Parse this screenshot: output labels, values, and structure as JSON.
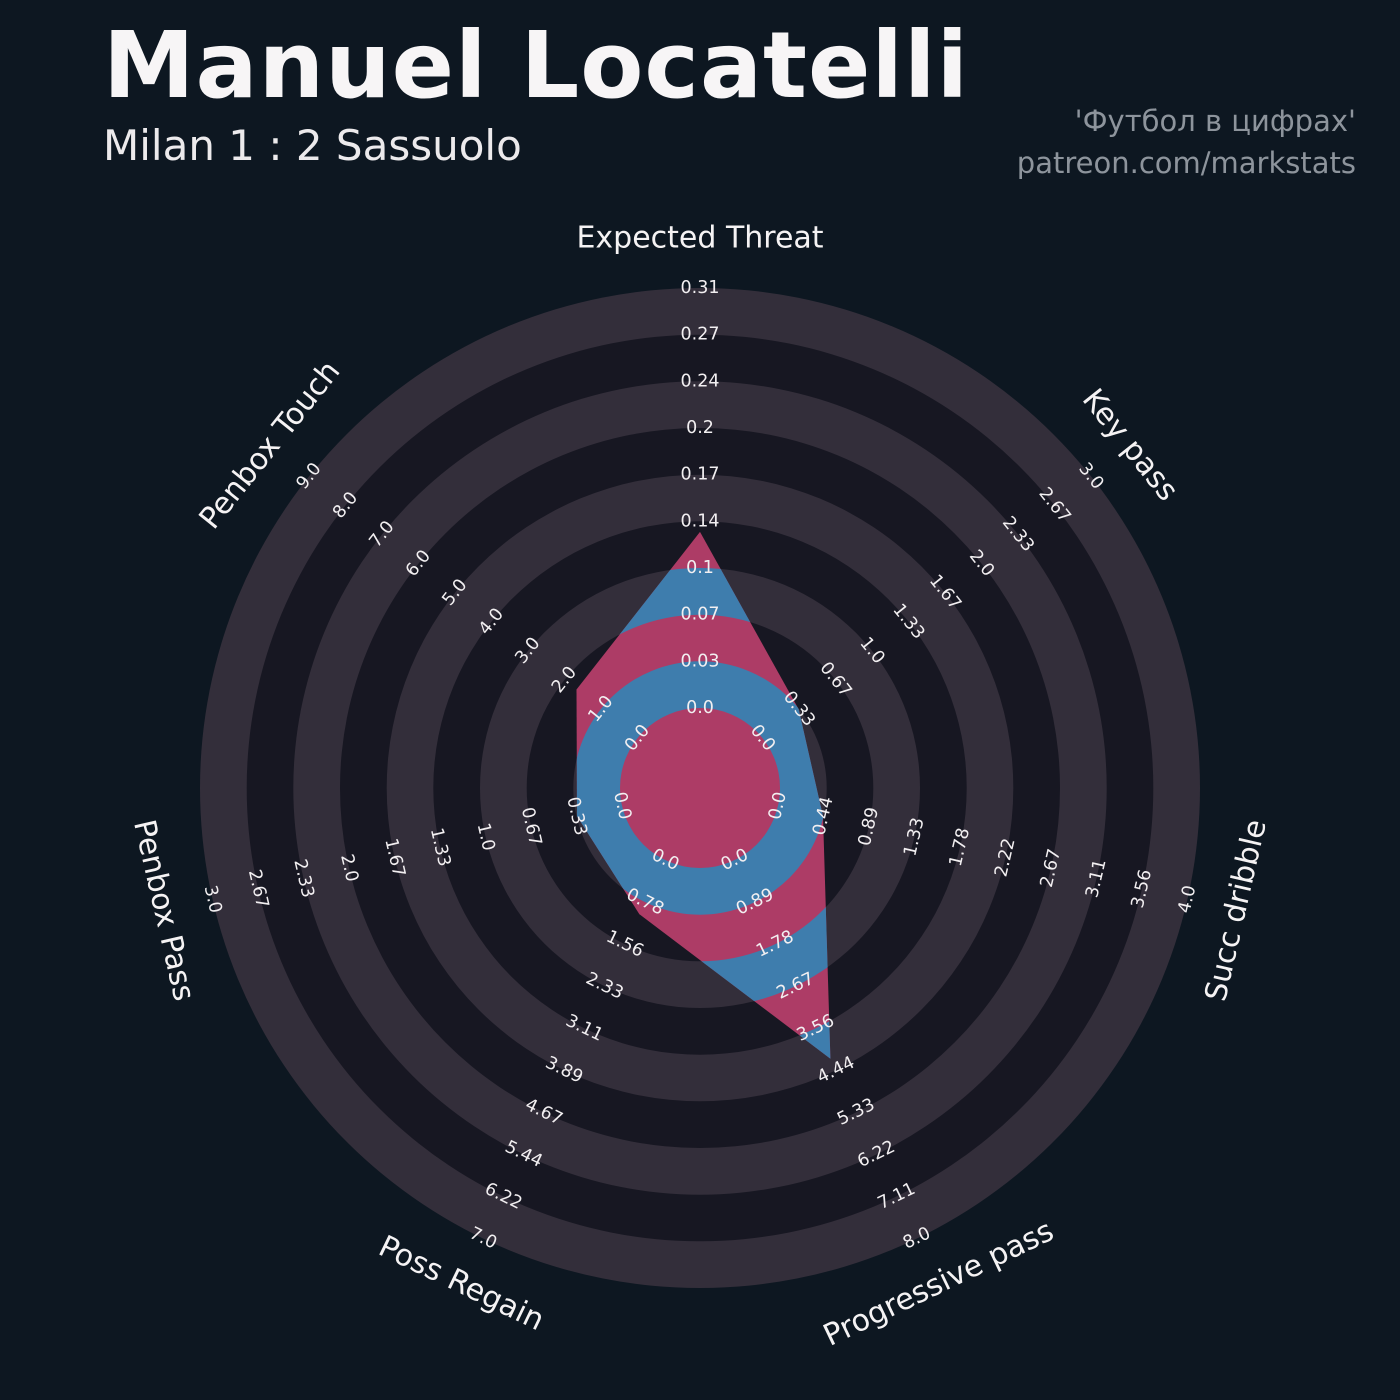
{
  "header": {
    "title": "Manuel Locatelli",
    "subtitle": "Milan 1 : 2 Sassuolo"
  },
  "credits": {
    "line1": "'Футбол в цифрах'",
    "line2": "patreon.com/markstats"
  },
  "chart_data": {
    "type": "radar",
    "title": "Manuel Locatelli — Milan 1 : 2 Sassuolo",
    "grid": "concentric-rings",
    "legend": "none",
    "rings_per_axis": 9,
    "direction": "clockwise",
    "start": "top",
    "axes": [
      {
        "label": "Expected Threat",
        "min": 0.0,
        "max": 0.31,
        "value": 0.13,
        "ticks": [
          "0.0",
          "0.03",
          "0.07",
          "0.1",
          "0.14",
          "0.17",
          "0.2",
          "0.24",
          "0.27",
          "0.31"
        ]
      },
      {
        "label": "Key pass",
        "min": 0.0,
        "max": 3.0,
        "value": 0.33,
        "ticks": [
          "0.0",
          "0.33",
          "0.67",
          "1.0",
          "1.33",
          "1.67",
          "2.0",
          "2.33",
          "2.67",
          "3.0"
        ]
      },
      {
        "label": "Succ dribble",
        "min": 0.0,
        "max": 4.0,
        "value": 0.44,
        "ticks": [
          "0.0",
          "0.44",
          "0.89",
          "1.33",
          "1.78",
          "2.22",
          "2.67",
          "3.11",
          "3.56",
          "4.0"
        ]
      },
      {
        "label": "Progressive pass",
        "min": 0.0,
        "max": 8.0,
        "value": 4.2,
        "ticks": [
          "0.0",
          "0.89",
          "1.78",
          "2.67",
          "3.56",
          "4.44",
          "5.33",
          "6.22",
          "7.11",
          "8.0"
        ]
      },
      {
        "label": "Poss Regain",
        "min": 0.0,
        "max": 7.0,
        "value": 1.0,
        "ticks": [
          "0.0",
          "0.78",
          "1.56",
          "2.33",
          "3.11",
          "3.89",
          "4.67",
          "5.44",
          "6.22",
          "7.0"
        ]
      },
      {
        "label": "Penbox Pass",
        "min": 0.0,
        "max": 3.0,
        "value": 0.33,
        "ticks": [
          "0.0",
          "0.33",
          "0.67",
          "1.0",
          "1.33",
          "1.67",
          "2.0",
          "2.33",
          "2.67",
          "3.0"
        ]
      },
      {
        "label": "Penbox Touch",
        "min": 0.0,
        "max": 9.0,
        "value": 1.67,
        "ticks": [
          "0.0",
          "1.0",
          "2.0",
          "3.0",
          "4.0",
          "5.0",
          "6.0",
          "7.0",
          "8.0",
          "9.0"
        ]
      }
    ],
    "colors": {
      "background": "#0d1721",
      "ring_dark": "#171722",
      "ring_light": "#332e3a",
      "fill_primary": "#ad3c66",
      "fill_secondary": "#3e7dad",
      "tick_text": "#f2eff1",
      "axis_text": "#f5f3f4"
    }
  }
}
